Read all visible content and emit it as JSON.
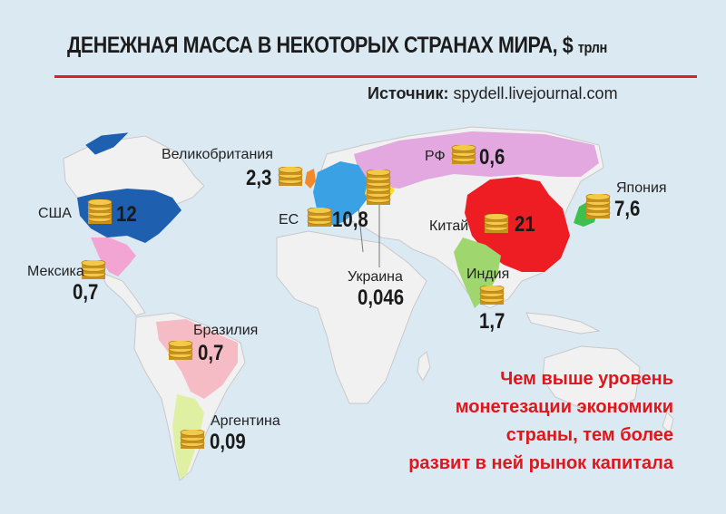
{
  "header": {
    "title": "ДЕНЕЖНАЯ МАССА В НЕКОТОРЫХ СТРАНАХ МИРА, $",
    "unit": "трлн",
    "source_label": "Источник:",
    "source_value": "spydell.livejournal.com"
  },
  "colors": {
    "ocean": "#dbe9f3",
    "land": "#f1f1f1",
    "usa": "#1f5fb0",
    "eu": "#3aa2e4",
    "russia": "#e3a8e0",
    "china": "#ee1d23",
    "japan": "#3fbf4b",
    "india": "#9fd66e",
    "brazil": "#f5bcc5",
    "argentina": "#e0f0a3",
    "mexico": "#f2a5d2",
    "uk": "#f28a2b",
    "ukraine": "#f8e024",
    "accent": "#d8231f"
  },
  "countries": [
    {
      "id": "usa",
      "label": "США",
      "value": "12"
    },
    {
      "id": "uk",
      "label": "Великобритания",
      "value": "2,3"
    },
    {
      "id": "eu",
      "label": "ЕС",
      "value": "10,8"
    },
    {
      "id": "russia",
      "label": "РФ",
      "value": "0,6"
    },
    {
      "id": "japan",
      "label": "Япония",
      "value": "7,6"
    },
    {
      "id": "china",
      "label": "Китай",
      "value": "21"
    },
    {
      "id": "mexico",
      "label": "Мексика",
      "value": "0,7"
    },
    {
      "id": "ukraine",
      "label": "Украина",
      "value": "0,046"
    },
    {
      "id": "india",
      "label": "Индия",
      "value": "1,7"
    },
    {
      "id": "brazil",
      "label": "Бразилия",
      "value": "0,7"
    },
    {
      "id": "argentina",
      "label": "Аргентина",
      "value": "0,09"
    }
  ],
  "note": {
    "lines": [
      "Чем выше уровень",
      "монетезации экономики",
      "страны, тем более",
      "развит в ней рынок капитала"
    ]
  }
}
